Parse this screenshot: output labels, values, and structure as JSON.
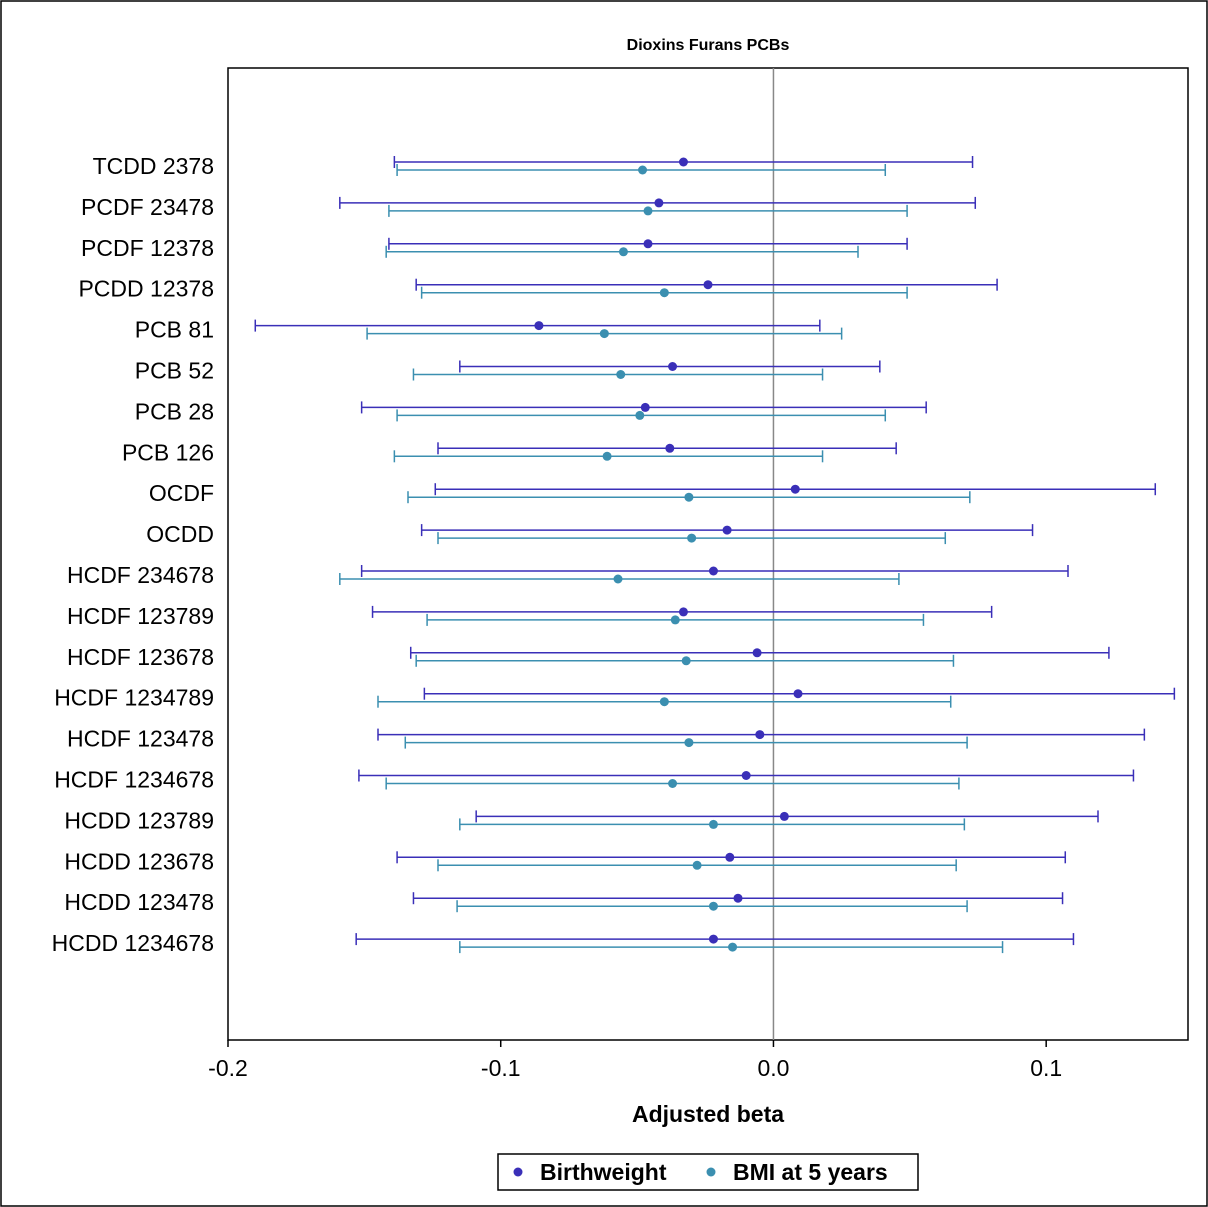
{
  "chart_data": {
    "type": "forest",
    "title": "Dioxins Furans PCBs",
    "xlabel": "Adjusted beta",
    "ylabel": "",
    "xlim": [
      -0.2,
      0.152
    ],
    "xticks": [
      -0.2,
      -0.1,
      0.0,
      0.1
    ],
    "xtick_labels": [
      "-0.2",
      "-0.1",
      "0.0",
      "0.1"
    ],
    "reference_line_x": 0.0,
    "grid": false,
    "legend_position": "bottom-center",
    "categories": [
      "TCDD 2378",
      "PCDF 23478",
      "PCDF 12378",
      "PCDD 12378",
      "PCB 81",
      "PCB 52",
      "PCB 28",
      "PCB 126",
      "OCDF",
      "OCDD",
      "HCDF 234678",
      "HCDF 123789",
      "HCDF 123678",
      "HCDF 1234789",
      "HCDF 123478",
      "HCDF 1234678",
      "HCDD 123789",
      "HCDD 123678",
      "HCDD 123478",
      "HCDD 1234678"
    ],
    "series": [
      {
        "name": "Birthweight",
        "color": "#3a2fb8",
        "estimate": [
          -0.033,
          -0.042,
          -0.046,
          -0.024,
          -0.086,
          -0.037,
          -0.047,
          -0.038,
          0.008,
          -0.017,
          -0.022,
          -0.033,
          -0.006,
          0.009,
          -0.005,
          -0.01,
          0.004,
          -0.016,
          -0.013,
          -0.022
        ],
        "lower": [
          -0.139,
          -0.159,
          -0.141,
          -0.131,
          -0.19,
          -0.115,
          -0.151,
          -0.123,
          -0.124,
          -0.129,
          -0.151,
          -0.147,
          -0.133,
          -0.128,
          -0.145,
          -0.152,
          -0.109,
          -0.138,
          -0.132,
          -0.153
        ],
        "upper": [
          0.073,
          0.074,
          0.049,
          0.082,
          0.017,
          0.039,
          0.056,
          0.045,
          0.14,
          0.095,
          0.108,
          0.08,
          0.123,
          0.147,
          0.136,
          0.132,
          0.119,
          0.107,
          0.106,
          0.11
        ]
      },
      {
        "name": "BMI at 5 years",
        "color": "#3b8fb0",
        "estimate": [
          -0.048,
          -0.046,
          -0.055,
          -0.04,
          -0.062,
          -0.056,
          -0.049,
          -0.061,
          -0.031,
          -0.03,
          -0.057,
          -0.036,
          -0.032,
          -0.04,
          -0.031,
          -0.037,
          -0.022,
          -0.028,
          -0.022,
          -0.015
        ],
        "lower": [
          -0.138,
          -0.141,
          -0.142,
          -0.129,
          -0.149,
          -0.132,
          -0.138,
          -0.139,
          -0.134,
          -0.123,
          -0.159,
          -0.127,
          -0.131,
          -0.145,
          -0.135,
          -0.142,
          -0.115,
          -0.123,
          -0.116,
          -0.115
        ],
        "upper": [
          0.041,
          0.049,
          0.031,
          0.049,
          0.025,
          0.018,
          0.041,
          0.018,
          0.072,
          0.063,
          0.046,
          0.055,
          0.066,
          0.065,
          0.071,
          0.068,
          0.07,
          0.067,
          0.071,
          0.084
        ]
      }
    ]
  }
}
